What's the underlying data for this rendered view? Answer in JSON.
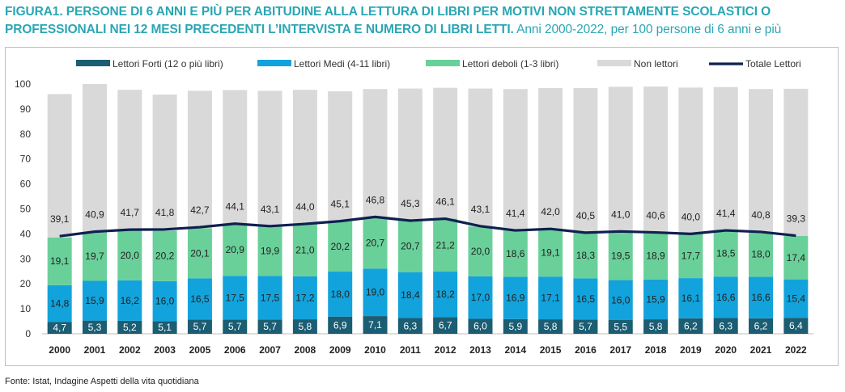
{
  "title": {
    "fig": "FIGURA1.",
    "main": "PERSONE DI 6 ANNI E PIÙ PER ABITUDINE ALLA LETTURA DI LIBRI PER MOTIVI NON STRETTAMENTE SCOLASTICI O PROFESSIONALI NEI 12 MESI PRECEDENTI L’INTERVISTA E NUMERO DI LIBRI LETTI.",
    "sub": "Anni 2000-2022, per 100 persone di 6 anni e più"
  },
  "source": "Fonte: Istat, Indagine Aspetti della vita quotidiana",
  "colors": {
    "forti": "#1b5d72",
    "medi": "#12a3dc",
    "deboli": "#6ad09a",
    "non": "#d9d9d9",
    "totale": "#0f2050"
  },
  "chart_data": {
    "type": "bar",
    "stacked": true,
    "categories": [
      "2000",
      "2001",
      "2002",
      "2003",
      "2005",
      "2006",
      "2007",
      "2008",
      "2009",
      "2010",
      "2011",
      "2012",
      "2013",
      "2014",
      "2015",
      "2016",
      "2017",
      "2018",
      "2019",
      "2020",
      "2021",
      "2022"
    ],
    "ylim": [
      0,
      100
    ],
    "yticks": [
      0,
      10,
      20,
      30,
      40,
      50,
      60,
      70,
      80,
      90,
      100
    ],
    "legend_position": "top",
    "series": [
      {
        "name": "Lettori Forti (12 o più libri)",
        "values": [
          4.7,
          5.3,
          5.2,
          5.1,
          5.7,
          5.7,
          5.7,
          5.8,
          6.9,
          7.1,
          6.3,
          6.7,
          6.0,
          5.9,
          5.8,
          5.7,
          5.5,
          5.8,
          6.2,
          6.3,
          6.2,
          6.4
        ],
        "labels": [
          "4,7",
          "5,3",
          "5,2",
          "5,1",
          "5,7",
          "5,7",
          "5,7",
          "5,8",
          "6,9",
          "7,1",
          "6,3",
          "6,7",
          "6,0",
          "5,9",
          "5,8",
          "5,7",
          "5,5",
          "5,8",
          "6,2",
          "6,3",
          "6,2",
          "6,4"
        ]
      },
      {
        "name": "Lettori Medi (4-11 libri)",
        "values": [
          14.8,
          15.9,
          16.2,
          16.0,
          16.5,
          17.5,
          17.5,
          17.2,
          18.0,
          19.0,
          18.4,
          18.2,
          17.0,
          16.9,
          17.1,
          16.5,
          16.0,
          15.9,
          16.1,
          16.6,
          16.6,
          15.4
        ],
        "labels": [
          "14,8",
          "15,9",
          "16,2",
          "16,0",
          "16,5",
          "17,5",
          "17,5",
          "17,2",
          "18,0",
          "19,0",
          "18,4",
          "18,2",
          "17,0",
          "16,9",
          "17,1",
          "16,5",
          "16,0",
          "15,9",
          "16,1",
          "16,6",
          "16,6",
          "15,4"
        ]
      },
      {
        "name": "Lettori deboli (1-3 libri)",
        "values": [
          19.1,
          19.7,
          20.0,
          20.2,
          20.1,
          20.9,
          19.9,
          21.0,
          20.2,
          20.7,
          20.7,
          21.2,
          20.0,
          18.6,
          19.1,
          18.3,
          19.5,
          18.9,
          17.7,
          18.5,
          18.0,
          17.4
        ],
        "labels": [
          "19,1",
          "19,7",
          "20,0",
          "20,2",
          "20,1",
          "20,9",
          "19,9",
          "21,0",
          "20,2",
          "20,7",
          "20,7",
          "21,2",
          "20,0",
          "18,6",
          "19,1",
          "18,3",
          "19,5",
          "18,9",
          "17,7",
          "18,5",
          "18,0",
          "17,4"
        ]
      },
      {
        "name": "Non lettori",
        "values": [
          57.4,
          59.1,
          56.3,
          54.5,
          55.0,
          53.5,
          54.2,
          53.7,
          52.0,
          51.2,
          52.8,
          52.4,
          55.2,
          56.6,
          56.4,
          57.9,
          57.9,
          58.4,
          58.6,
          57.4,
          57.2,
          58.9
        ]
      }
    ],
    "line": {
      "name": "Totale Lettori",
      "values": [
        39.1,
        40.9,
        41.7,
        41.8,
        42.7,
        44.1,
        43.1,
        44.0,
        45.1,
        46.8,
        45.3,
        46.1,
        43.1,
        41.4,
        42.0,
        40.5,
        41.0,
        40.6,
        40.0,
        41.4,
        40.8,
        39.3
      ],
      "labels": [
        "39,1",
        "40,9",
        "41,7",
        "41,8",
        "42,7",
        "44,1",
        "43,1",
        "44,0",
        "45,1",
        "46,8",
        "45,3",
        "46,1",
        "43,1",
        "41,4",
        "42,0",
        "40,5",
        "41,0",
        "40,6",
        "40,0",
        "41,4",
        "40,8",
        "39,3"
      ]
    }
  }
}
